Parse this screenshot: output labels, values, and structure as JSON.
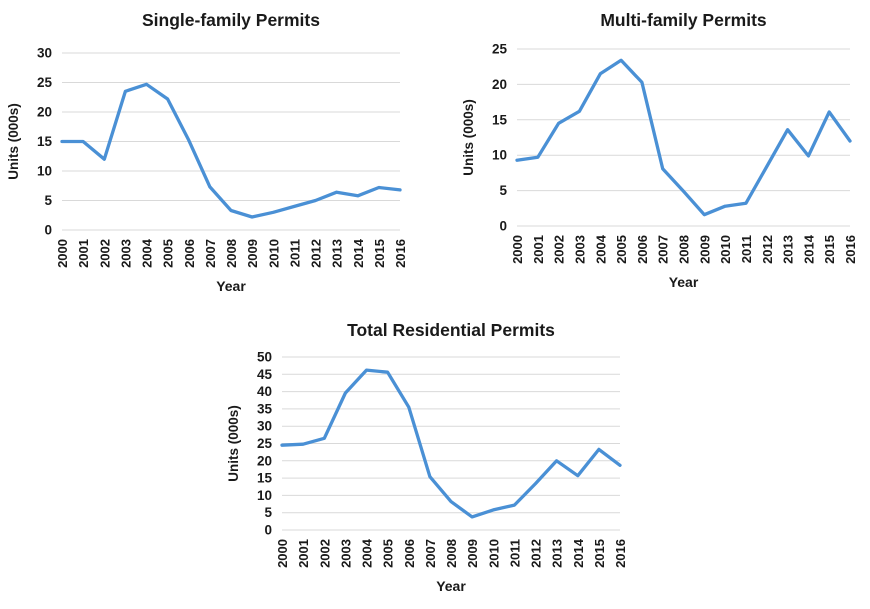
{
  "page": {
    "background_color": "#ffffff",
    "text_color": "#1a1a1a",
    "line_color": "#4A90D5",
    "grid_color": "#D9D9D9"
  },
  "chart_data": [
    {
      "type": "line",
      "title": "Single-family Permits",
      "xlabel": "Year",
      "ylabel": "Units (000s)",
      "categories": [
        "2000",
        "2001",
        "2002",
        "2003",
        "2004",
        "2005",
        "2006",
        "2007",
        "2008",
        "2009",
        "2010",
        "2011",
        "2012",
        "2013",
        "2014",
        "2015",
        "2016"
      ],
      "values": [
        15,
        15,
        12,
        23.5,
        24.7,
        22.2,
        15.2,
        7.3,
        3.3,
        2.2,
        3.0,
        4.0,
        5.0,
        6.4,
        5.8,
        7.2,
        6.8
      ],
      "ylim": [
        0,
        30
      ],
      "ytick_step": 5,
      "grid": true,
      "legend": "none"
    },
    {
      "type": "line",
      "title": "Multi-family Permits",
      "xlabel": "Year",
      "ylabel": "Units (000s)",
      "categories": [
        "2000",
        "2001",
        "2002",
        "2003",
        "2004",
        "2005",
        "2006",
        "2007",
        "2008",
        "2009",
        "2010",
        "2011",
        "2012",
        "2013",
        "2014",
        "2015",
        "2016"
      ],
      "values": [
        9.3,
        9.7,
        14.5,
        16.2,
        21.5,
        23.4,
        20.3,
        8.1,
        4.9,
        1.6,
        2.8,
        3.2,
        8.4,
        13.6,
        9.9,
        16.1,
        12.0
      ],
      "ylim": [
        0,
        25
      ],
      "ytick_step": 5,
      "grid": true,
      "legend": "none"
    },
    {
      "type": "line",
      "title": "Total Residential Permits",
      "xlabel": "Year",
      "ylabel": "Units (000s)",
      "categories": [
        "2000",
        "2001",
        "2002",
        "2003",
        "2004",
        "2005",
        "2006",
        "2007",
        "2008",
        "2009",
        "2010",
        "2011",
        "2012",
        "2013",
        "2014",
        "2015",
        "2016"
      ],
      "values": [
        24.5,
        24.8,
        26.5,
        39.6,
        46.2,
        45.6,
        35.5,
        15.4,
        8.2,
        3.8,
        5.8,
        7.2,
        13.4,
        20.0,
        15.7,
        23.3,
        18.7
      ],
      "ylim": [
        0,
        50
      ],
      "ytick_step": 5,
      "grid": true,
      "legend": "none"
    }
  ]
}
